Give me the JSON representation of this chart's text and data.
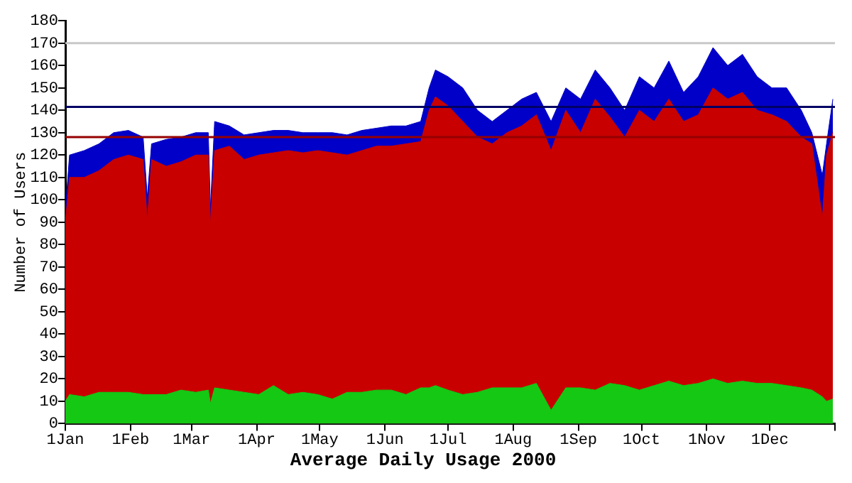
{
  "chart_data": {
    "type": "area",
    "title": "Average Daily Usage 2000",
    "ylabel": "Number of Users",
    "x": [
      "2000-01-01",
      "2000-01-03",
      "2000-01-10",
      "2000-01-17",
      "2000-01-24",
      "2000-01-31",
      "2000-02-07",
      "2000-02-09",
      "2000-02-11",
      "2000-02-18",
      "2000-02-25",
      "2000-03-03",
      "2000-03-09",
      "2000-03-10",
      "2000-03-12",
      "2000-03-19",
      "2000-03-26",
      "2000-04-02",
      "2000-04-09",
      "2000-04-16",
      "2000-04-23",
      "2000-04-30",
      "2000-05-07",
      "2000-05-14",
      "2000-05-21",
      "2000-05-28",
      "2000-06-04",
      "2000-06-11",
      "2000-06-18",
      "2000-06-22",
      "2000-06-25",
      "2000-07-01",
      "2000-07-08",
      "2000-07-15",
      "2000-07-22",
      "2000-07-29",
      "2000-08-05",
      "2000-08-12",
      "2000-08-19",
      "2000-08-26",
      "2000-09-02",
      "2000-09-09",
      "2000-09-16",
      "2000-09-23",
      "2000-09-30",
      "2000-10-07",
      "2000-10-14",
      "2000-10-21",
      "2000-10-28",
      "2000-11-04",
      "2000-11-11",
      "2000-11-18",
      "2000-11-25",
      "2000-12-02",
      "2000-12-09",
      "2000-12-16",
      "2000-12-21",
      "2000-12-26",
      "2000-12-28",
      "2000-12-31"
    ],
    "series": [
      {
        "color": "#0000c8",
        "values": [
          95,
          120,
          122,
          125,
          130,
          131,
          128,
          101,
          125,
          127,
          128,
          130,
          130,
          96,
          135,
          133,
          129,
          130,
          131,
          131,
          130,
          130,
          130,
          129,
          131,
          132,
          133,
          133,
          135,
          150,
          158,
          155,
          150,
          140,
          135,
          140,
          145,
          148,
          135,
          150,
          145,
          158,
          150,
          140,
          155,
          150,
          162,
          148,
          155,
          168,
          160,
          165,
          155,
          150,
          150,
          140,
          130,
          111,
          125,
          145
        ]
      },
      {
        "color": "#c80000",
        "values": [
          90,
          110,
          110,
          113,
          118,
          120,
          118,
          91,
          118,
          115,
          117,
          120,
          120,
          89,
          122,
          124,
          118,
          120,
          121,
          122,
          121,
          122,
          121,
          120,
          122,
          124,
          124,
          125,
          126,
          140,
          146,
          142,
          135,
          128,
          125,
          130,
          133,
          138,
          122,
          140,
          130,
          145,
          137,
          128,
          140,
          135,
          145,
          135,
          138,
          150,
          145,
          148,
          140,
          138,
          135,
          128,
          125,
          92,
          120,
          130
        ]
      },
      {
        "color": "#14c814",
        "values": [
          10,
          13,
          12,
          14,
          14,
          14,
          13,
          13,
          13,
          13,
          15,
          14,
          15,
          9,
          16,
          15,
          14,
          13,
          17,
          13,
          14,
          13,
          11,
          14,
          14,
          15,
          15,
          13,
          16,
          16,
          17,
          15,
          13,
          14,
          16,
          16,
          16,
          18,
          6,
          16,
          16,
          15,
          18,
          17,
          15,
          17,
          19,
          17,
          18,
          20,
          18,
          19,
          18,
          18,
          17,
          16,
          15,
          12,
          10,
          11
        ]
      }
    ],
    "xlim": [
      "2000-01-01",
      "2001-01-01"
    ],
    "xticks": [
      {
        "value": "2000-01-01",
        "label": "1Jan"
      },
      {
        "value": "2000-02-01",
        "label": "1Feb"
      },
      {
        "value": "2000-03-01",
        "label": "1Mar"
      },
      {
        "value": "2000-04-01",
        "label": "1Apr"
      },
      {
        "value": "2000-05-01",
        "label": "1May"
      },
      {
        "value": "2000-06-01",
        "label": "1Jun"
      },
      {
        "value": "2000-07-01",
        "label": "1Jul"
      },
      {
        "value": "2000-08-01",
        "label": "1Aug"
      },
      {
        "value": "2000-09-01",
        "label": "1Sep"
      },
      {
        "value": "2000-10-01",
        "label": "1Oct"
      },
      {
        "value": "2000-11-01",
        "label": "1Nov"
      },
      {
        "value": "2000-12-01",
        "label": "1Dec"
      },
      {
        "value": "2001-01-01",
        "label": null
      }
    ],
    "ylim": [
      0,
      180
    ],
    "yticks": [
      0,
      10,
      20,
      30,
      40,
      50,
      60,
      70,
      80,
      90,
      100,
      110,
      120,
      130,
      140,
      150,
      160,
      170,
      180
    ],
    "ref_lines": [
      {
        "axis": "y",
        "value": 170,
        "color": "#c8c8c8"
      },
      {
        "axis": "y",
        "value": 141.5,
        "color": "#000064"
      },
      {
        "axis": "y",
        "value": 128,
        "color": "#960000"
      }
    ],
    "grid": false,
    "legend": false
  }
}
